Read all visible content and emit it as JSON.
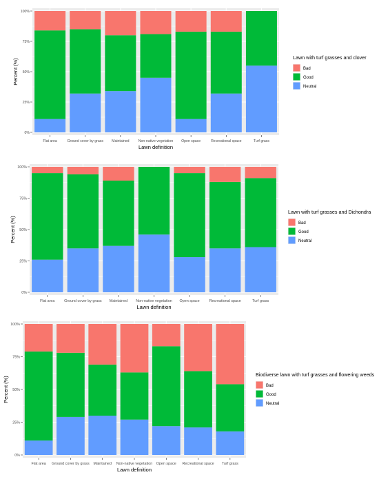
{
  "colors": {
    "bad": "#F8766D",
    "good": "#00BA38",
    "neutral": "#619CFF",
    "panel": "#EBEBEB",
    "grid": "#FFFFFF",
    "tick_text": "#4D4D4D"
  },
  "chart_data": [
    {
      "type": "bar",
      "stacked": true,
      "title": "",
      "xlabel": "Lawn definition",
      "ylabel": "Percent (%)",
      "ylim": [
        0,
        100
      ],
      "yticks": [
        "0%",
        "25%",
        "50%",
        "75%",
        "100%"
      ],
      "legend_title": "Lawn with turf grasses and clover",
      "legend_position": "right",
      "categories": [
        "Flat area",
        "Ground cover by grass",
        "Maintained",
        "Non-native vegetation",
        "Open space",
        "Recreational space",
        "Turf grass"
      ],
      "series": [
        {
          "name": "Bad",
          "color": "#F8766D",
          "values": [
            16,
            15,
            20,
            19,
            17,
            17,
            0
          ]
        },
        {
          "name": "Good",
          "color": "#00BA38",
          "values": [
            73,
            53,
            46,
            36,
            72,
            51,
            45
          ]
        },
        {
          "name": "Neutral",
          "color": "#619CFF",
          "values": [
            11,
            32,
            34,
            45,
            11,
            32,
            55
          ]
        }
      ]
    },
    {
      "type": "bar",
      "stacked": true,
      "title": "",
      "xlabel": "Lawn definition",
      "ylabel": "Percent (%)",
      "ylim": [
        0,
        100
      ],
      "yticks": [
        "0%",
        "25%",
        "50%",
        "75%",
        "100%"
      ],
      "legend_title": "Lawn with turf grasses and Dichondra",
      "legend_position": "right",
      "categories": [
        "Flat area",
        "Ground cover by grass",
        "Maintained",
        "Non-native vegetation",
        "Open space",
        "Recreational space",
        "Turf grass"
      ],
      "series": [
        {
          "name": "Bad",
          "color": "#F8766D",
          "values": [
            5,
            6,
            11,
            0,
            5,
            12,
            9
          ]
        },
        {
          "name": "Good",
          "color": "#00BA38",
          "values": [
            69,
            59,
            52,
            54,
            67,
            53,
            55
          ]
        },
        {
          "name": "Neutral",
          "color": "#619CFF",
          "values": [
            26,
            35,
            37,
            46,
            28,
            35,
            36
          ]
        }
      ]
    },
    {
      "type": "bar",
      "stacked": true,
      "title": "",
      "xlabel": "Lawn definition",
      "ylabel": "Percent (%)",
      "ylim": [
        0,
        100
      ],
      "yticks": [
        "0%",
        "25%",
        "50%",
        "75%",
        "100%"
      ],
      "legend_title": "Biodiverse lawn with turf grasses and flowering weeds",
      "legend_position": "right",
      "categories": [
        "Flat area",
        "Ground cover by grass",
        "Maintained",
        "Non-native vegetation",
        "Open space",
        "Recreational space",
        "Turf grass"
      ],
      "series": [
        {
          "name": "Bad",
          "color": "#F8766D",
          "values": [
            21,
            22,
            31,
            37,
            17,
            36,
            46
          ]
        },
        {
          "name": "Good",
          "color": "#00BA38",
          "values": [
            68,
            49,
            39,
            36,
            61,
            43,
            36
          ]
        },
        {
          "name": "Neutral",
          "color": "#619CFF",
          "values": [
            11,
            29,
            30,
            27,
            22,
            21,
            18
          ]
        }
      ]
    }
  ]
}
